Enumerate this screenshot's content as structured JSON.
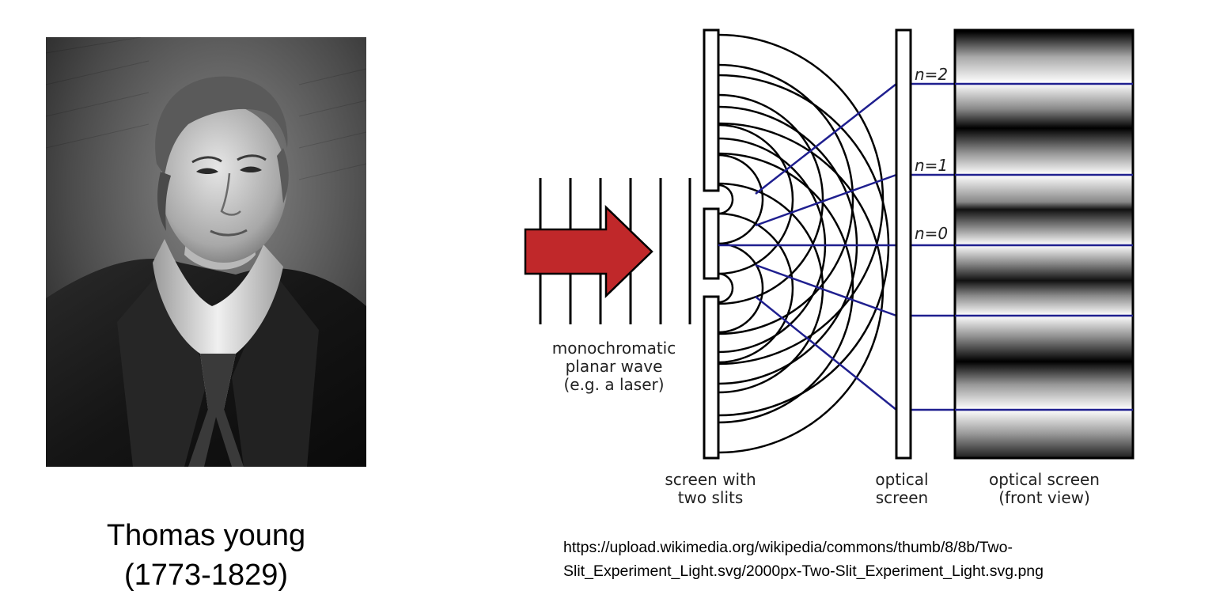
{
  "portrait": {
    "caption_name": "Thomas young",
    "caption_years": "(1773-1829)"
  },
  "diagram": {
    "wave_label": [
      "monochromatic",
      "planar wave",
      "(e.g. a laser)"
    ],
    "slits_label": [
      "screen with",
      "two slits"
    ],
    "optical_screen_label": [
      "optical",
      "screen"
    ],
    "front_view_label": [
      "optical screen",
      "(front view)"
    ],
    "orders": [
      "n=2",
      "n=1",
      "n=0"
    ],
    "colors": {
      "arrow": "#c0282a",
      "rays": "#1f1f8f",
      "lines": "#000000"
    }
  },
  "source": {
    "line1": "https://upload.wikimedia.org/wikipedia/commons/thumb/8/8b/Two-",
    "line2": "Slit_Experiment_Light.svg/2000px-Two-Slit_Experiment_Light.svg.png"
  }
}
